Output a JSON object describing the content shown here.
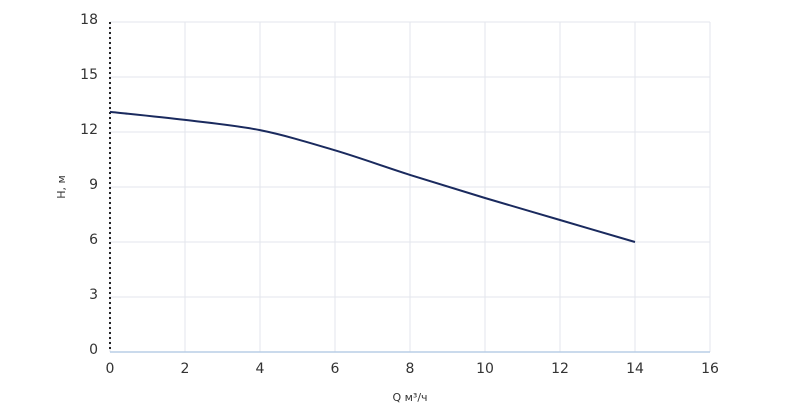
{
  "chart_data": {
    "type": "line",
    "x": [
      0,
      2,
      4,
      6,
      8,
      10,
      12,
      14
    ],
    "series": [
      {
        "color": "#1a2a5e",
        "values": [
          13.1,
          12.66,
          12.1,
          11.0,
          9.66,
          8.4,
          7.2,
          6.0
        ]
      }
    ],
    "xlabel": "Q м³/ч",
    "ylabel": "H, м",
    "xlim": [
      0,
      16
    ],
    "xticks": [
      0,
      2,
      4,
      6,
      8,
      10,
      12,
      14,
      16
    ],
    "ylim": [
      0,
      18
    ],
    "yticks": [
      0,
      3,
      6,
      9,
      12,
      15,
      18
    ],
    "grid": true
  }
}
